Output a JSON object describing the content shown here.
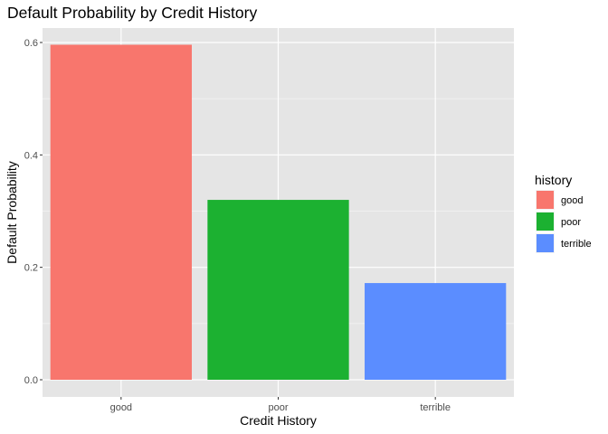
{
  "chart_data": {
    "type": "bar",
    "title": "Default Probability by Credit History",
    "xlabel": "Credit History",
    "ylabel": "Default Probability",
    "categories": [
      "good",
      "poor",
      "terrible"
    ],
    "values": [
      0.596,
      0.32,
      0.172
    ],
    "ylim": [
      0,
      0.63
    ],
    "yticks": [
      0.0,
      0.2,
      0.4,
      0.6
    ],
    "ytick_labels": [
      "0.0",
      "0.2",
      "0.4",
      "0.6"
    ],
    "colors": [
      "#F8766D",
      "#1CB131",
      "#5B8DFF"
    ],
    "background": "#E5E5E5",
    "grid": true,
    "legend": {
      "title": "history",
      "position": "right",
      "entries": [
        "good",
        "poor",
        "terrible"
      ]
    }
  }
}
